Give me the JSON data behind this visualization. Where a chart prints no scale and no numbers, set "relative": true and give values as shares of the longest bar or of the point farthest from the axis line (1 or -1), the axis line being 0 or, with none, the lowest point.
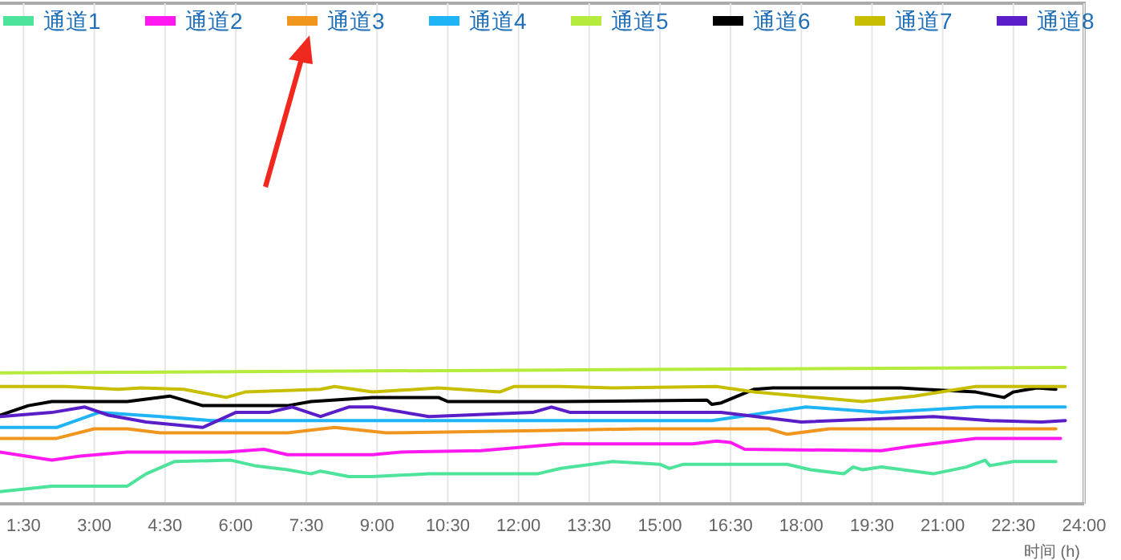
{
  "chart_data": {
    "type": "line",
    "relative": true,
    "xlabel": "时间 (h)",
    "xlim": [
      1,
      24
    ],
    "xticks": [
      {
        "value": 1.5,
        "label": "1:30"
      },
      {
        "value": 3,
        "label": "3:00"
      },
      {
        "value": 4.5,
        "label": "4:30"
      },
      {
        "value": 6,
        "label": "6:00"
      },
      {
        "value": 7.5,
        "label": "7:30"
      },
      {
        "value": 9,
        "label": "9:00"
      },
      {
        "value": 10.5,
        "label": "10:30"
      },
      {
        "value": 12,
        "label": "12:00"
      },
      {
        "value": 13.5,
        "label": "13:30"
      },
      {
        "value": 15,
        "label": "15:00"
      },
      {
        "value": 16.5,
        "label": "16:30"
      },
      {
        "value": 18,
        "label": "18:00"
      },
      {
        "value": 19.5,
        "label": "19:30"
      },
      {
        "value": 21,
        "label": "21:00"
      },
      {
        "value": 22.5,
        "label": "22:30"
      },
      {
        "value": 24,
        "label": "24:00"
      }
    ],
    "grid": "x",
    "legend": "top",
    "marker": "none",
    "line_style": "solid",
    "series": [
      {
        "name": "通道1",
        "color": "#4de39a",
        "x": [
          1,
          2.1,
          3.7,
          4.1,
          4.7,
          5.9,
          6.4,
          7.1,
          7.6,
          7.8,
          8.4,
          8.9,
          10.1,
          12.4,
          12.9,
          14,
          15,
          15.2,
          15.5,
          17.7,
          18.2,
          18.9,
          19.1,
          19.3,
          19.7,
          20.8,
          21.5,
          21.9,
          22,
          22.5,
          23.4
        ],
        "values": [
          0.09,
          0.13,
          0.13,
          0.22,
          0.31,
          0.32,
          0.28,
          0.25,
          0.22,
          0.24,
          0.2,
          0.2,
          0.22,
          0.22,
          0.26,
          0.31,
          0.29,
          0.26,
          0.29,
          0.29,
          0.25,
          0.22,
          0.27,
          0.25,
          0.27,
          0.22,
          0.27,
          0.32,
          0.28,
          0.31,
          0.31
        ]
      },
      {
        "name": "通道2",
        "color": "#ff19f0",
        "x": [
          1,
          2.1,
          2.7,
          3.7,
          5.8,
          6.6,
          7.1,
          8.9,
          9.5,
          11.2,
          12.9,
          15.7,
          16.2,
          16.5,
          16.8,
          19.7,
          20.3,
          21.7,
          23.5
        ],
        "values": [
          0.38,
          0.32,
          0.35,
          0.38,
          0.38,
          0.4,
          0.36,
          0.36,
          0.38,
          0.39,
          0.44,
          0.44,
          0.46,
          0.45,
          0.4,
          0.39,
          0.42,
          0.48,
          0.48
        ]
      },
      {
        "name": "通道3",
        "color": "#f0961e",
        "x": [
          1,
          2.2,
          3,
          3.7,
          4.4,
          7.1,
          8.1,
          9.2,
          12.9,
          14.6,
          17.3,
          17.7,
          18.6,
          23.4
        ],
        "values": [
          0.48,
          0.48,
          0.55,
          0.55,
          0.52,
          0.52,
          0.56,
          0.52,
          0.54,
          0.55,
          0.55,
          0.51,
          0.55,
          0.55
        ]
      },
      {
        "name": "通道4",
        "color": "#1eb4f5",
        "x": [
          1,
          2.2,
          3.1,
          4.4,
          5.5,
          12.9,
          16.1,
          18.1,
          19.7,
          21.7,
          23.6
        ],
        "values": [
          0.56,
          0.56,
          0.67,
          0.64,
          0.61,
          0.61,
          0.61,
          0.71,
          0.67,
          0.71,
          0.71
        ]
      },
      {
        "name": "通道5",
        "color": "#b4eb3c",
        "x": [
          1,
          12,
          23.6
        ],
        "values": [
          0.96,
          0.98,
          1
        ]
      },
      {
        "name": "通道6",
        "color": "#000000",
        "x": [
          1,
          1.6,
          2.1,
          3.7,
          4.6,
          5.3,
          7.1,
          7.6,
          8.9,
          10.3,
          10.5,
          12.9,
          16,
          16.1,
          16.3,
          17,
          17.4,
          20.1,
          20.6,
          21.7,
          22.3,
          22.5,
          23,
          23.4
        ],
        "values": [
          0.65,
          0.72,
          0.75,
          0.75,
          0.79,
          0.72,
          0.72,
          0.75,
          0.78,
          0.78,
          0.75,
          0.75,
          0.76,
          0.73,
          0.74,
          0.84,
          0.85,
          0.85,
          0.84,
          0.82,
          0.78,
          0.82,
          0.85,
          0.84
        ]
      },
      {
        "name": "通道7",
        "color": "#c8be00",
        "x": [
          1,
          2.4,
          3.5,
          4,
          4.9,
          5.8,
          6.2,
          7.8,
          8.1,
          8.9,
          10.3,
          11.6,
          11.9,
          12.9,
          14,
          16.2,
          17,
          19.3,
          20.4,
          21.7,
          23.6
        ],
        "values": [
          0.86,
          0.86,
          0.84,
          0.85,
          0.84,
          0.78,
          0.82,
          0.84,
          0.86,
          0.82,
          0.85,
          0.82,
          0.86,
          0.86,
          0.85,
          0.86,
          0.82,
          0.75,
          0.79,
          0.86,
          0.86
        ]
      },
      {
        "name": "通道8",
        "color": "#5a1ec8",
        "x": [
          1,
          2.1,
          2.8,
          3.3,
          4.1,
          5.3,
          6,
          6.7,
          7.2,
          7.8,
          8.4,
          8.9,
          10.1,
          12.3,
          12.7,
          13.1,
          16.3,
          18,
          20.8,
          22,
          23.1,
          23.6
        ],
        "values": [
          0.64,
          0.67,
          0.71,
          0.65,
          0.6,
          0.56,
          0.67,
          0.67,
          0.71,
          0.64,
          0.71,
          0.71,
          0.64,
          0.67,
          0.71,
          0.67,
          0.67,
          0.6,
          0.64,
          0.61,
          0.6,
          0.61
        ]
      }
    ]
  }
}
